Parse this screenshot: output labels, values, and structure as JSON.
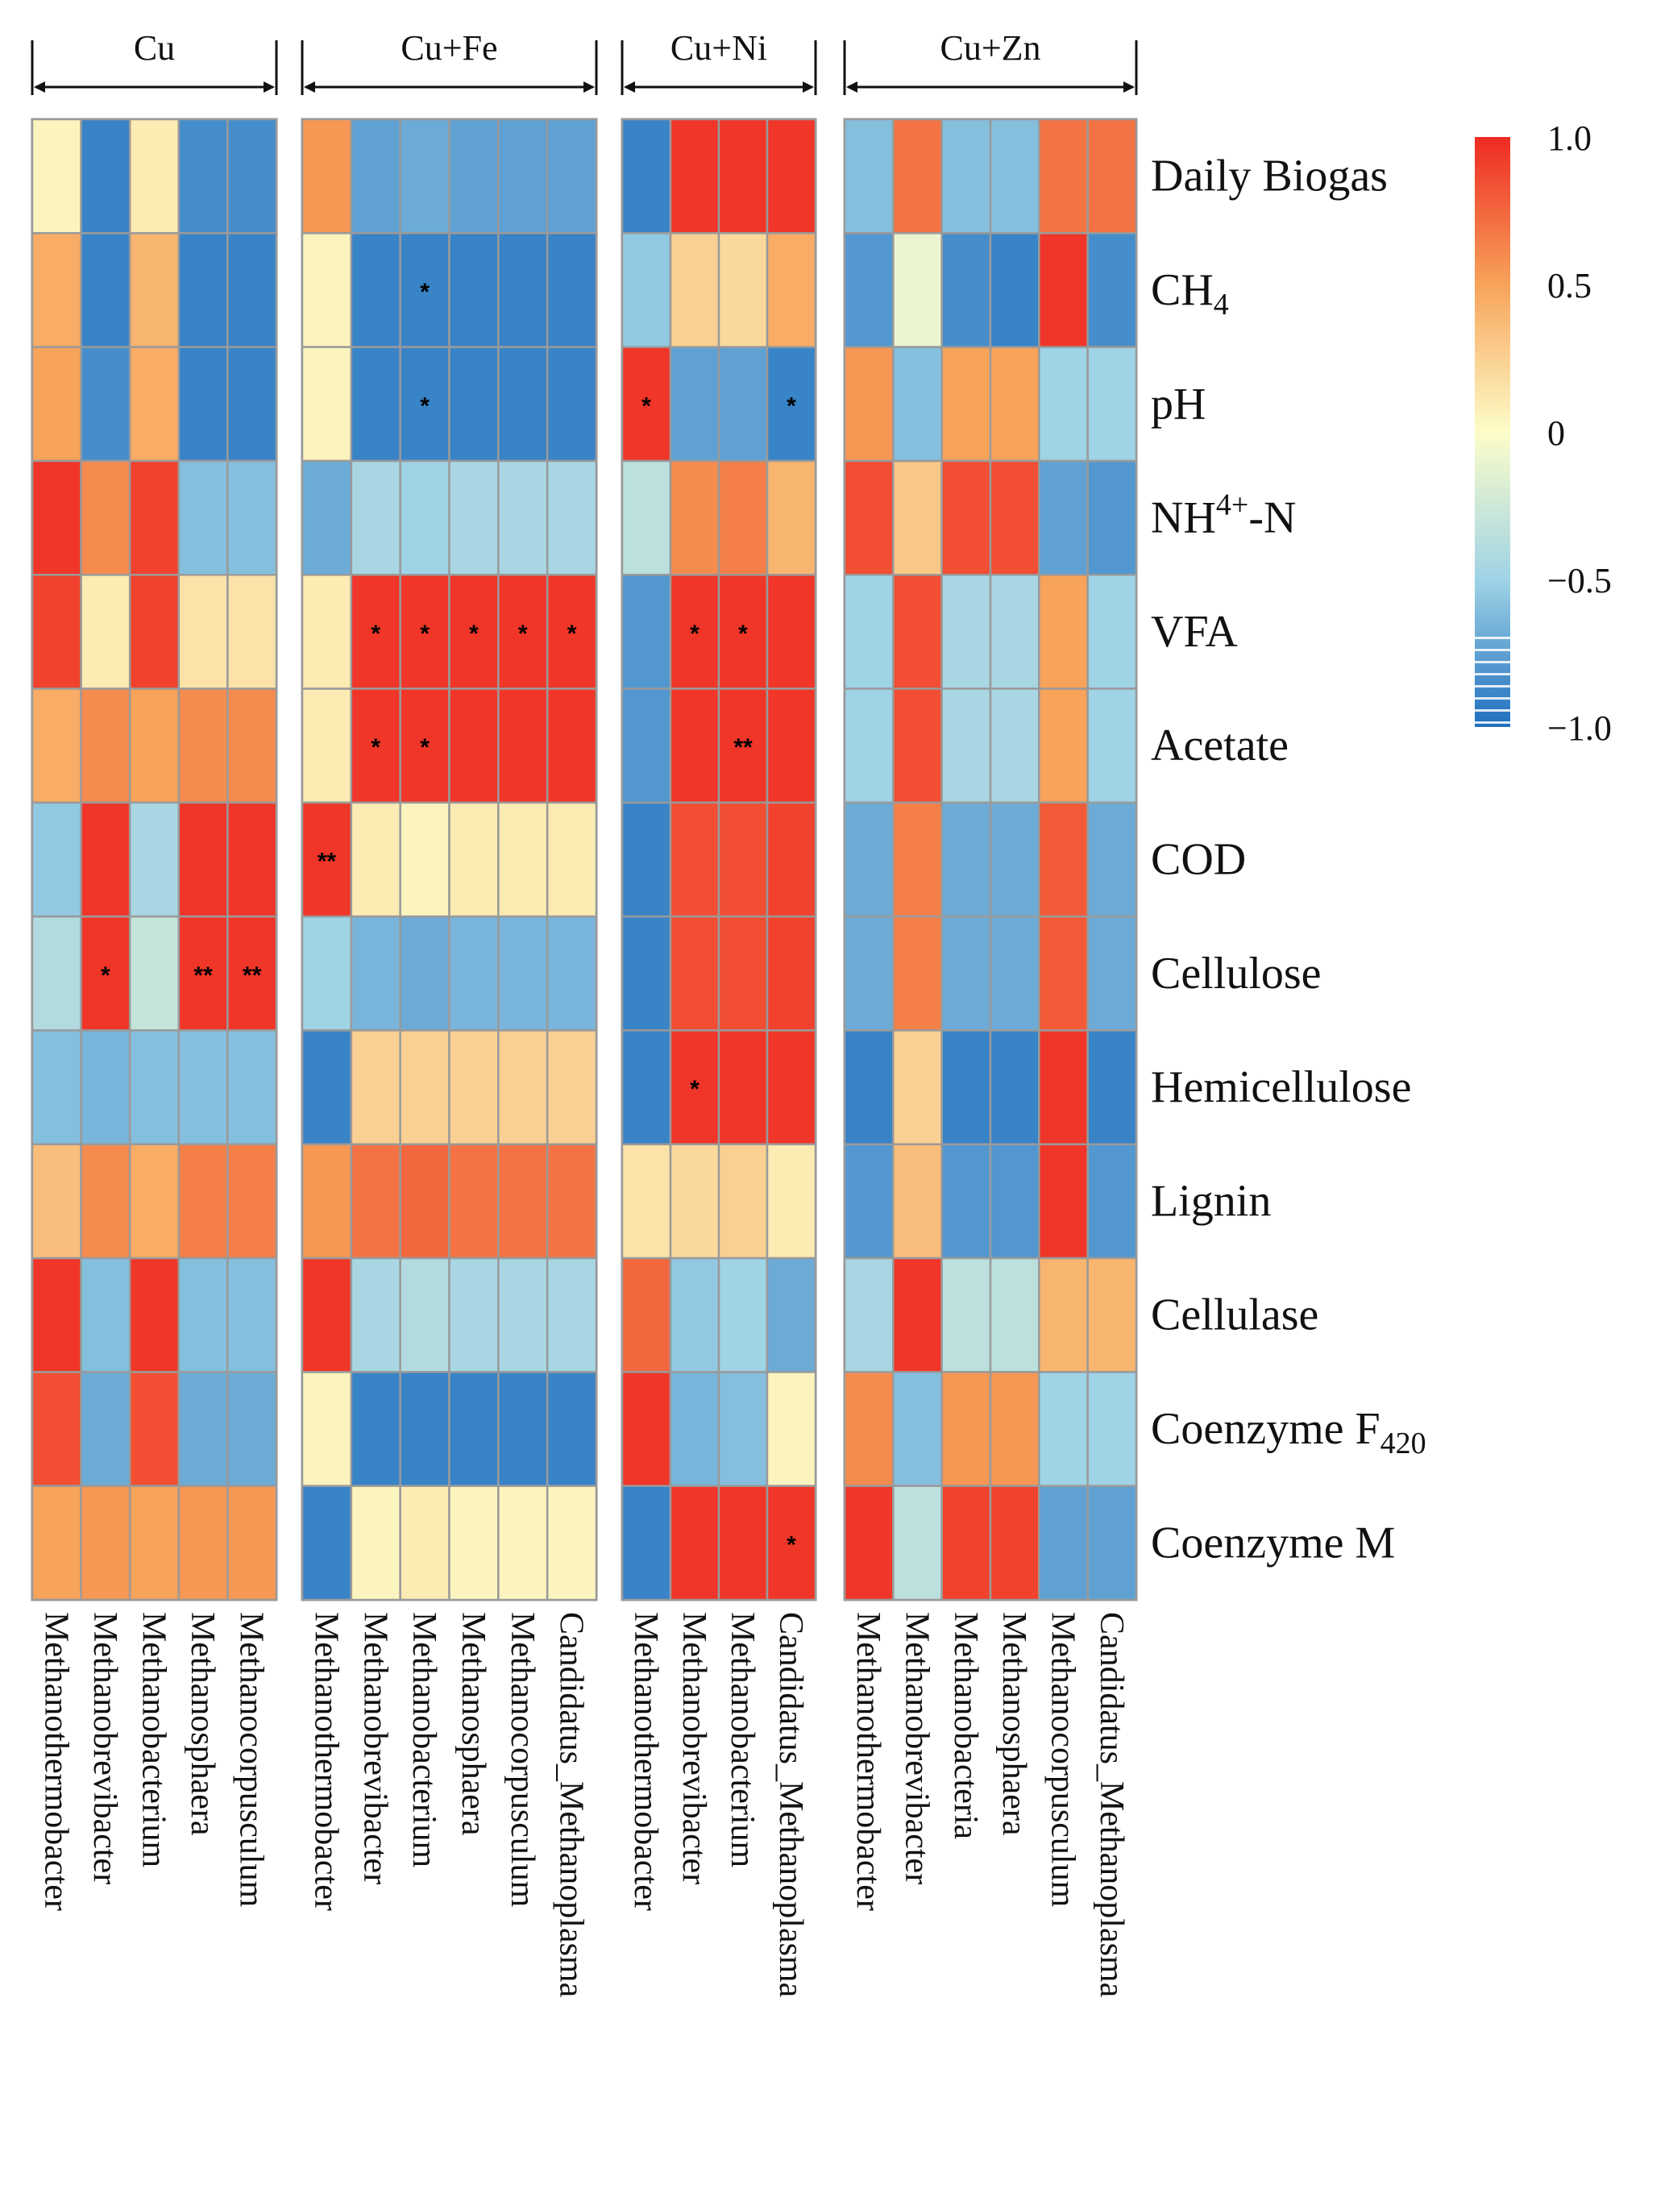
{
  "chart_data": {
    "type": "heatmap",
    "title": "",
    "value_range": [
      -1.0,
      1.0
    ],
    "colorbar": {
      "ticks": [
        {
          "value": 1.0,
          "label": "1.0"
        },
        {
          "value": 0.5,
          "label": "0.5"
        },
        {
          "value": 0.0,
          "label": "0"
        },
        {
          "value": -0.5,
          "label": "−0.5"
        },
        {
          "value": -1.0,
          "label": "−1.0"
        }
      ],
      "colors": {
        "neg": "#1f6fbf",
        "mid": "#fdfdc9",
        "pos": "#ee2a22",
        "neg_mid": "#9fd3e6",
        "pos_mid": "#f7a35a"
      }
    },
    "rows": [
      {
        "label": "Daily Biogas"
      },
      {
        "label": "CH",
        "sub": "4"
      },
      {
        "label": "pH"
      },
      {
        "label": "NH",
        "sup": "4+",
        "after": "-N"
      },
      {
        "label": "VFA"
      },
      {
        "label": "Acetate"
      },
      {
        "label": "COD"
      },
      {
        "label": "Cellulose"
      },
      {
        "label": "Hemicellulose"
      },
      {
        "label": "Lignin"
      },
      {
        "label": "Cellulase"
      },
      {
        "label": "Coenzyme F",
        "sub": "420"
      },
      {
        "label": "Coenzyme M"
      }
    ],
    "groups": [
      {
        "name": "Cu",
        "columns": [
          "Methanothermobacter",
          "Methanobrevibacter",
          "Methanobacterium",
          "Methanosphaera",
          "Methanocorpusculum"
        ],
        "values": [
          [
            0.05,
            -0.9,
            0.1,
            -0.85,
            -0.85
          ],
          [
            0.45,
            -0.9,
            0.4,
            -0.9,
            -0.9
          ],
          [
            0.5,
            -0.85,
            0.45,
            -0.9,
            -0.9
          ],
          [
            0.95,
            0.6,
            0.9,
            -0.6,
            -0.6
          ],
          [
            0.9,
            0.1,
            0.9,
            0.15,
            0.15
          ],
          [
            0.45,
            0.6,
            0.5,
            0.6,
            0.6
          ],
          [
            -0.55,
            0.95,
            -0.45,
            0.95,
            0.95
          ],
          [
            -0.4,
            0.95,
            -0.3,
            0.95,
            0.95
          ],
          [
            -0.6,
            -0.65,
            -0.6,
            -0.6,
            -0.6
          ],
          [
            0.35,
            0.6,
            0.45,
            0.65,
            0.65
          ],
          [
            0.95,
            -0.6,
            0.95,
            -0.6,
            -0.6
          ],
          [
            0.85,
            -0.7,
            0.85,
            -0.7,
            -0.7
          ],
          [
            0.5,
            0.55,
            0.5,
            0.55,
            0.55
          ]
        ],
        "significance": [
          [
            "",
            "",
            "",
            "",
            ""
          ],
          [
            "",
            "",
            "",
            "",
            ""
          ],
          [
            "",
            "",
            "",
            "",
            ""
          ],
          [
            "",
            "",
            "",
            "",
            ""
          ],
          [
            "",
            "",
            "",
            "",
            ""
          ],
          [
            "",
            "",
            "",
            "",
            ""
          ],
          [
            "",
            "",
            "",
            "",
            ""
          ],
          [
            "",
            "*",
            "",
            "**",
            "**"
          ],
          [
            "",
            "",
            "",
            "",
            ""
          ],
          [
            "",
            "",
            "",
            "",
            ""
          ],
          [
            "",
            "",
            "",
            "",
            ""
          ],
          [
            "",
            "",
            "",
            "",
            ""
          ],
          [
            "",
            "",
            "",
            "",
            ""
          ]
        ]
      },
      {
        "name": "Cu+Fe",
        "columns": [
          "Methanothermobacter",
          "Methanobrevibacter",
          "Methanobacterium",
          "Methanosphaera",
          "Methanocorpusculum",
          "Candidatus_Methanoplasma"
        ],
        "values": [
          [
            0.55,
            -0.75,
            -0.7,
            -0.75,
            -0.75,
            -0.75
          ],
          [
            0.05,
            -0.9,
            -0.9,
            -0.9,
            -0.9,
            -0.9
          ],
          [
            0.05,
            -0.9,
            -0.9,
            -0.9,
            -0.9,
            -0.9
          ],
          [
            -0.7,
            -0.45,
            -0.5,
            -0.45,
            -0.45,
            -0.45
          ],
          [
            0.1,
            0.95,
            0.95,
            0.95,
            0.95,
            0.95
          ],
          [
            0.1,
            0.95,
            0.95,
            0.95,
            0.95,
            0.95
          ],
          [
            0.95,
            0.1,
            0.05,
            0.1,
            0.1,
            0.1
          ],
          [
            -0.5,
            -0.65,
            -0.7,
            -0.65,
            -0.65,
            -0.65
          ],
          [
            -0.9,
            0.25,
            0.25,
            0.25,
            0.25,
            0.25
          ],
          [
            0.55,
            0.7,
            0.75,
            0.7,
            0.7,
            0.7
          ],
          [
            0.95,
            -0.45,
            -0.4,
            -0.45,
            -0.45,
            -0.45
          ],
          [
            0.05,
            -0.9,
            -0.9,
            -0.9,
            -0.9,
            -0.9
          ],
          [
            -0.9,
            0.05,
            0.1,
            0.05,
            0.05,
            0.05
          ]
        ],
        "significance": [
          [
            "",
            "",
            "",
            "",
            "",
            ""
          ],
          [
            "",
            "",
            "*",
            "",
            "",
            ""
          ],
          [
            "",
            "",
            "*",
            "",
            "",
            ""
          ],
          [
            "",
            "",
            "",
            "",
            "",
            ""
          ],
          [
            "",
            "*",
            "*",
            "*",
            "*",
            "*"
          ],
          [
            "",
            "*",
            "*",
            "",
            "",
            ""
          ],
          [
            "**",
            "",
            "",
            "",
            "",
            ""
          ],
          [
            "",
            "",
            "",
            "",
            "",
            ""
          ],
          [
            "",
            "",
            "",
            "",
            "",
            ""
          ],
          [
            "",
            "",
            "",
            "",
            "",
            ""
          ],
          [
            "",
            "",
            "",
            "",
            "",
            ""
          ],
          [
            "",
            "",
            "",
            "",
            "",
            ""
          ],
          [
            "",
            "",
            "",
            "",
            "",
            ""
          ]
        ]
      },
      {
        "name": "Cu+Ni",
        "columns": [
          "Methanothermobacter",
          "Methanobrevibacter",
          "Methanobacterium",
          "Candidatus_Methanoplasma"
        ],
        "values": [
          [
            -0.9,
            0.95,
            0.95,
            0.95
          ],
          [
            -0.55,
            0.25,
            0.2,
            0.45
          ],
          [
            0.95,
            -0.75,
            -0.75,
            -0.9
          ],
          [
            -0.35,
            0.6,
            0.65,
            0.4
          ],
          [
            -0.8,
            0.95,
            0.95,
            0.95
          ],
          [
            -0.8,
            0.95,
            0.95,
            0.95
          ],
          [
            -0.9,
            0.85,
            0.85,
            0.9
          ],
          [
            -0.9,
            0.85,
            0.85,
            0.9
          ],
          [
            -0.9,
            0.95,
            0.95,
            0.95
          ],
          [
            0.15,
            0.2,
            0.25,
            0.1
          ],
          [
            0.75,
            -0.55,
            -0.5,
            -0.7
          ],
          [
            0.95,
            -0.65,
            -0.6,
            0.05
          ],
          [
            -0.9,
            0.95,
            0.95,
            0.95
          ]
        ],
        "significance": [
          [
            "",
            "",
            "",
            ""
          ],
          [
            "",
            "",
            "",
            ""
          ],
          [
            "*",
            "",
            "",
            "*"
          ],
          [
            "",
            "",
            "",
            ""
          ],
          [
            "",
            "*",
            "*",
            ""
          ],
          [
            "",
            "",
            "**",
            ""
          ],
          [
            "",
            "",
            "",
            ""
          ],
          [
            "",
            "",
            "",
            ""
          ],
          [
            "",
            "*",
            "",
            ""
          ],
          [
            "",
            "",
            "",
            ""
          ],
          [
            "",
            "",
            "",
            ""
          ],
          [
            "",
            "",
            "",
            ""
          ],
          [
            "",
            "",
            "",
            "*"
          ]
        ]
      },
      {
        "name": "Cu+Zn",
        "columns": [
          "Methanothermobacter",
          "Methanobrevibacter",
          "Methanobacteria",
          "Methanosphaera",
          "Methanocorpusculum",
          "Candidatus_Methanoplasma"
        ],
        "values": [
          [
            -0.6,
            0.7,
            -0.6,
            -0.6,
            0.7,
            0.7
          ],
          [
            -0.8,
            -0.1,
            -0.85,
            -0.9,
            0.95,
            -0.85
          ],
          [
            0.55,
            -0.6,
            0.5,
            0.5,
            -0.5,
            -0.5
          ],
          [
            0.85,
            0.3,
            0.85,
            0.85,
            -0.75,
            -0.8
          ],
          [
            -0.5,
            0.85,
            -0.45,
            -0.45,
            0.5,
            -0.5
          ],
          [
            -0.5,
            0.85,
            -0.45,
            -0.45,
            0.5,
            -0.5
          ],
          [
            -0.7,
            0.65,
            -0.7,
            -0.7,
            0.8,
            -0.7
          ],
          [
            -0.7,
            0.65,
            -0.7,
            -0.7,
            0.8,
            -0.7
          ],
          [
            -0.9,
            0.25,
            -0.9,
            -0.9,
            0.95,
            -0.9
          ],
          [
            -0.8,
            0.35,
            -0.8,
            -0.8,
            0.95,
            -0.8
          ],
          [
            -0.45,
            0.95,
            -0.35,
            -0.35,
            0.4,
            0.4
          ],
          [
            0.6,
            -0.6,
            0.55,
            0.55,
            -0.5,
            -0.5
          ],
          [
            0.95,
            -0.35,
            0.9,
            0.9,
            -0.75,
            -0.75
          ]
        ],
        "significance": [
          [
            "",
            "",
            "",
            "",
            "",
            ""
          ],
          [
            "",
            "",
            "",
            "",
            "",
            ""
          ],
          [
            "",
            "",
            "",
            "",
            "",
            ""
          ],
          [
            "",
            "",
            "",
            "",
            "",
            ""
          ],
          [
            "",
            "",
            "",
            "",
            "",
            ""
          ],
          [
            "",
            "",
            "",
            "",
            "",
            ""
          ],
          [
            "",
            "",
            "",
            "",
            "",
            ""
          ],
          [
            "",
            "",
            "",
            "",
            "",
            ""
          ],
          [
            "",
            "",
            "",
            "",
            "",
            ""
          ],
          [
            "",
            "",
            "",
            "",
            "",
            ""
          ],
          [
            "",
            "",
            "",
            "",
            "",
            ""
          ],
          [
            "",
            "",
            "",
            "",
            "",
            ""
          ],
          [
            "",
            "",
            "",
            "",
            "",
            ""
          ]
        ]
      }
    ]
  }
}
